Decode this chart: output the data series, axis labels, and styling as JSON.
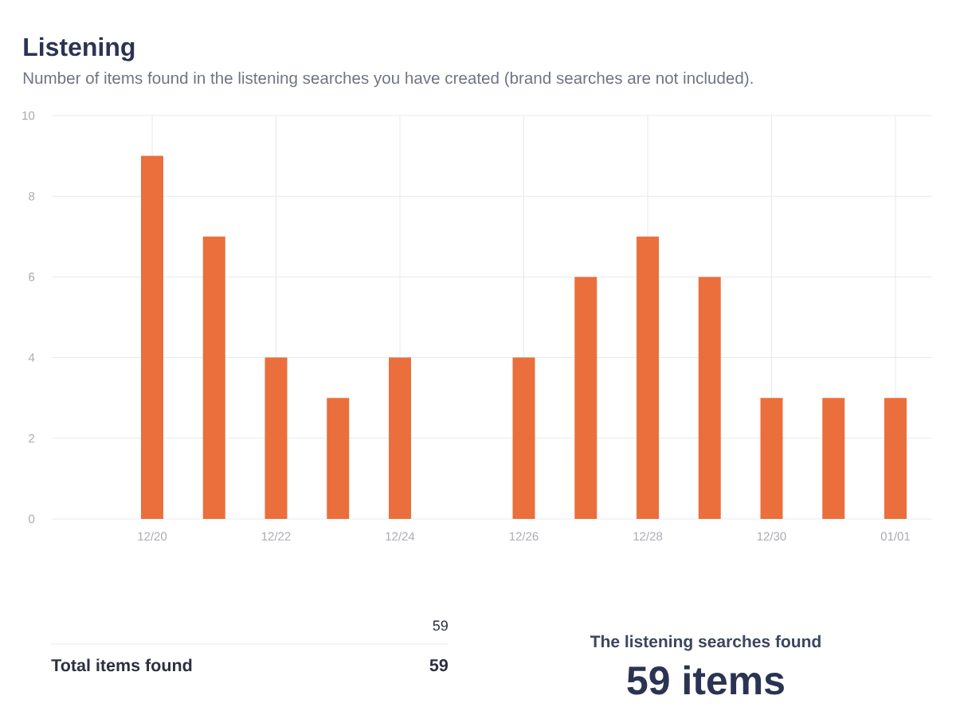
{
  "chart_data": {
    "type": "bar",
    "title": "Listening",
    "subtitle": "Number of items found in the listening searches you have created (brand searches are not included).",
    "categories": [
      "12/20",
      null,
      "12/22",
      null,
      "12/24",
      null,
      "12/26",
      null,
      "12/28",
      null,
      "12/30",
      null,
      "01/01"
    ],
    "values": [
      9,
      7,
      4,
      3,
      4,
      0,
      4,
      6,
      7,
      6,
      3,
      3,
      3
    ],
    "color": "#ea6f3c",
    "ylim": [
      0,
      10
    ],
    "yticks": [
      0,
      2,
      4,
      6,
      8,
      10
    ],
    "grid": true,
    "annotations": [
      "59",
      "Total items found",
      "59",
      "The listening searches found",
      "59 items"
    ]
  }
}
